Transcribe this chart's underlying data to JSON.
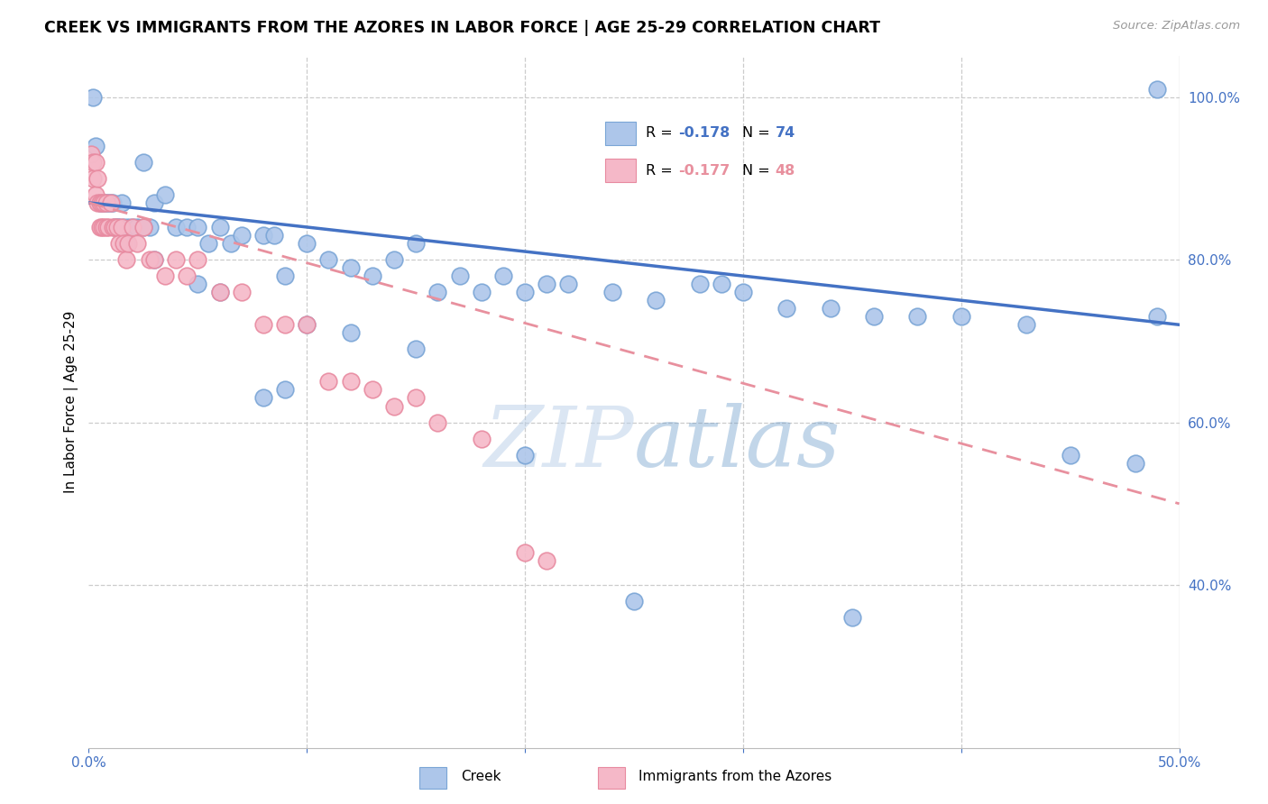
{
  "title": "CREEK VS IMMIGRANTS FROM THE AZORES IN LABOR FORCE | AGE 25-29 CORRELATION CHART",
  "source": "Source: ZipAtlas.com",
  "ylabel": "In Labor Force | Age 25-29",
  "xlim": [
    0.0,
    0.5
  ],
  "ylim": [
    0.2,
    1.05
  ],
  "x_ticks": [
    0.0,
    0.1,
    0.2,
    0.3,
    0.4,
    0.5
  ],
  "x_tick_labels": [
    "0.0%",
    "",
    "",
    "",
    "",
    "50.0%"
  ],
  "y_ticks": [
    0.4,
    0.6,
    0.8,
    1.0
  ],
  "y_tick_labels": [
    "40.0%",
    "60.0%",
    "80.0%",
    "100.0%"
  ],
  "watermark": "ZIPatlas",
  "blue_color": "#adc6ea",
  "blue_edge_color": "#7aa5d6",
  "pink_color": "#f5b8c8",
  "pink_edge_color": "#e88aa0",
  "blue_line_color": "#4472c4",
  "pink_line_color": "#e8909e",
  "blue_trend": [
    0.87,
    0.72
  ],
  "pink_trend": [
    0.87,
    0.5
  ],
  "creek_x": [
    0.002,
    0.003,
    0.005,
    0.006,
    0.007,
    0.008,
    0.009,
    0.01,
    0.011,
    0.012,
    0.013,
    0.014,
    0.015,
    0.016,
    0.017,
    0.018,
    0.02,
    0.022,
    0.025,
    0.028,
    0.03,
    0.035,
    0.04,
    0.045,
    0.05,
    0.055,
    0.06,
    0.065,
    0.07,
    0.08,
    0.085,
    0.09,
    0.1,
    0.11,
    0.12,
    0.13,
    0.14,
    0.15,
    0.16,
    0.17,
    0.18,
    0.19,
    0.2,
    0.21,
    0.22,
    0.24,
    0.26,
    0.28,
    0.29,
    0.3,
    0.32,
    0.34,
    0.36,
    0.38,
    0.4,
    0.43,
    0.45,
    0.48,
    0.49,
    0.025,
    0.03,
    0.05,
    0.06,
    0.08,
    0.09,
    0.1,
    0.12,
    0.15,
    0.2,
    0.25,
    0.35,
    0.49
  ],
  "creek_y": [
    1.0,
    0.94,
    0.87,
    0.87,
    0.87,
    0.87,
    0.87,
    0.87,
    0.87,
    0.84,
    0.84,
    0.84,
    0.87,
    0.84,
    0.82,
    0.84,
    0.84,
    0.84,
    0.92,
    0.84,
    0.87,
    0.88,
    0.84,
    0.84,
    0.84,
    0.82,
    0.84,
    0.82,
    0.83,
    0.83,
    0.83,
    0.78,
    0.82,
    0.8,
    0.79,
    0.78,
    0.8,
    0.82,
    0.76,
    0.78,
    0.76,
    0.78,
    0.76,
    0.77,
    0.77,
    0.76,
    0.75,
    0.77,
    0.77,
    0.76,
    0.74,
    0.74,
    0.73,
    0.73,
    0.73,
    0.72,
    0.56,
    0.55,
    1.01,
    0.84,
    0.8,
    0.77,
    0.76,
    0.63,
    0.64,
    0.72,
    0.71,
    0.69,
    0.56,
    0.38,
    0.36,
    0.73
  ],
  "azores_x": [
    0.001,
    0.002,
    0.002,
    0.003,
    0.003,
    0.004,
    0.004,
    0.005,
    0.005,
    0.006,
    0.006,
    0.007,
    0.007,
    0.008,
    0.008,
    0.009,
    0.01,
    0.011,
    0.012,
    0.013,
    0.014,
    0.015,
    0.016,
    0.017,
    0.018,
    0.02,
    0.022,
    0.025,
    0.028,
    0.03,
    0.035,
    0.04,
    0.045,
    0.05,
    0.06,
    0.07,
    0.08,
    0.09,
    0.1,
    0.11,
    0.12,
    0.13,
    0.14,
    0.15,
    0.16,
    0.18,
    0.2,
    0.21
  ],
  "azores_y": [
    0.93,
    0.92,
    0.9,
    0.88,
    0.92,
    0.87,
    0.9,
    0.87,
    0.84,
    0.87,
    0.84,
    0.87,
    0.84,
    0.87,
    0.84,
    0.84,
    0.87,
    0.84,
    0.84,
    0.84,
    0.82,
    0.84,
    0.82,
    0.8,
    0.82,
    0.84,
    0.82,
    0.84,
    0.8,
    0.8,
    0.78,
    0.8,
    0.78,
    0.8,
    0.76,
    0.76,
    0.72,
    0.72,
    0.72,
    0.65,
    0.65,
    0.64,
    0.62,
    0.63,
    0.6,
    0.58,
    0.44,
    0.43
  ]
}
